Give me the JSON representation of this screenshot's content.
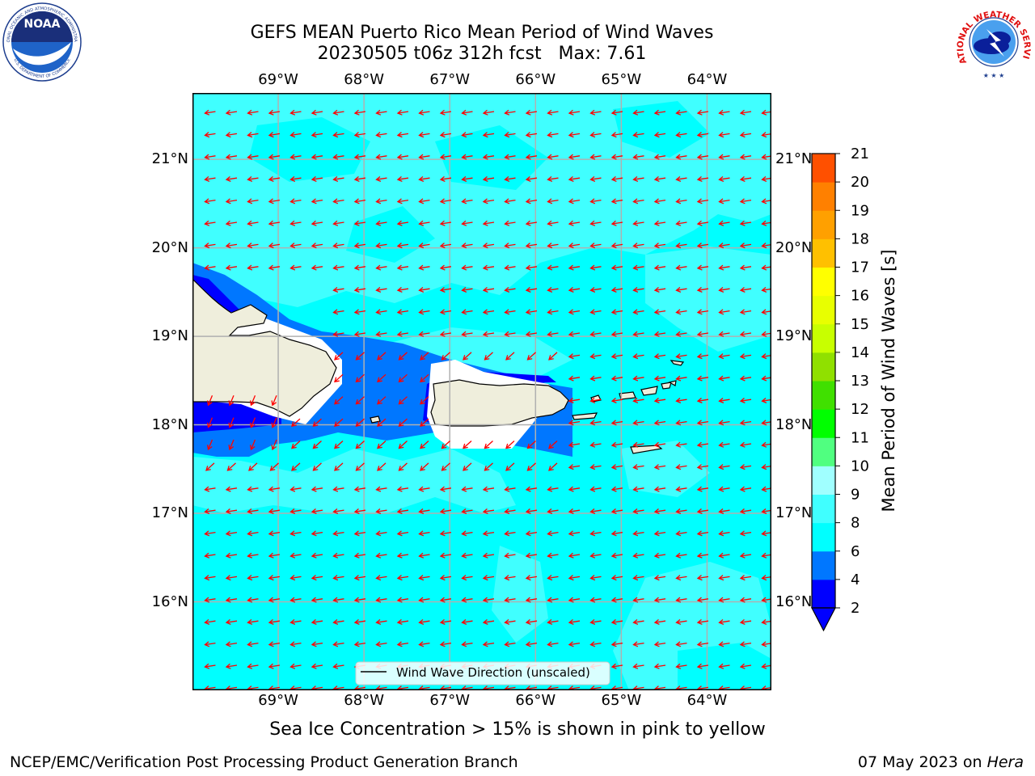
{
  "header": {
    "title_line1": "GEFS MEAN Puerto Rico Mean Period of Wind Waves",
    "title_line2": "20230505 t06z 312h fcst   Max: 7.61"
  },
  "logos": {
    "left": {
      "text": "NOAA",
      "ring_top": "NATIONAL OCEANIC AND ATMOSPHERIC ADMINISTRATION",
      "ring_bottom": "U.S. DEPARTMENT OF COMMERCE"
    },
    "right": {
      "ring_text": "NATIONAL WEATHER SERVICE"
    }
  },
  "map": {
    "lon_ticks": [
      "69°W",
      "68°W",
      "67°W",
      "66°W",
      "65°W",
      "64°W"
    ],
    "lon_values": [
      -69,
      -68,
      -67,
      -66,
      -65,
      -64
    ],
    "lat_ticks": [
      "21°N",
      "20°N",
      "19°N",
      "18°N",
      "17°N",
      "16°N"
    ],
    "lat_values": [
      21,
      20,
      19,
      18,
      17,
      16
    ],
    "lon_range": [
      -70.0,
      -63.25
    ],
    "lat_range": [
      15.0,
      21.75
    ],
    "grid": true,
    "wave_direction": "westward",
    "legend": {
      "label": "Wind Wave Direction (unscaled)",
      "placement": "bottom-center"
    }
  },
  "colorbar": {
    "label": "Mean Period of Wind Waves [s]",
    "tick_labels": [
      "2",
      "4",
      "6",
      "8",
      "9",
      "10",
      "11",
      "12",
      "13",
      "14",
      "15",
      "16",
      "17",
      "18",
      "19",
      "20",
      "21"
    ],
    "colors": [
      "#0000ff",
      "#0077ff",
      "#00ffff",
      "#40ffff",
      "#a0ffff",
      "#50ff80",
      "#00ff00",
      "#40e000",
      "#90e000",
      "#c8ff00",
      "#e8ff00",
      "#ffff00",
      "#ffc000",
      "#ffa000",
      "#ff8000",
      "#ff5000",
      "#ff2000",
      "#ff0000"
    ],
    "extend_color": "#0000ff"
  },
  "colors": {
    "land": "#efeedc",
    "sea_base": "#00ffff",
    "sea_light": "#40ffff",
    "shallow": "#0077ff",
    "deep_blue": "#0000ff",
    "arrow": "#ff0000",
    "grid": "#b0b0b0"
  },
  "notes": {
    "sea_ice": "Sea Ice Concentration > 15% is shown in pink to yellow"
  },
  "footer": {
    "left": "NCEP/EMC/Verification Post Processing Product Generation Branch",
    "date": "07 May 2023 on ",
    "host": "Hera"
  }
}
